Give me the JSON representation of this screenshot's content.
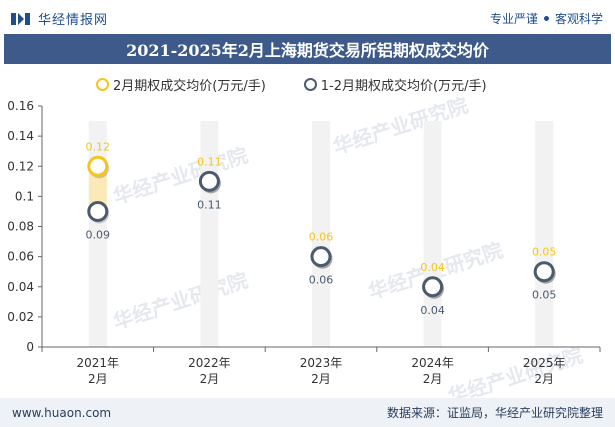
{
  "brand": {
    "name": "华经情报网"
  },
  "tagline": {
    "left": "专业严谨",
    "right": "客观科学"
  },
  "title": "2021-2025年2月上海期货交易所铝期权成交均价",
  "footer": {
    "site": "www.huaon.com",
    "source": "数据来源：证监局，华经产业研究院整理"
  },
  "watermark": "华经产业研究院",
  "colors": {
    "accent": "#f5c518",
    "series1": "#4a5a72",
    "titleBg": "#3d5a8a"
  },
  "chart_data": {
    "type": "scatter",
    "categories": [
      "2021年\n2月",
      "2022年\n2月",
      "2023年\n2月",
      "2024年\n2月",
      "2025年\n2月"
    ],
    "ylim": [
      0,
      0.16
    ],
    "yticks": [
      "0",
      "0.02",
      "0.04",
      "0.06",
      "0.08",
      "0.1",
      "0.12",
      "0.14",
      "0.16"
    ],
    "series": [
      {
        "name": "2月期权成交均价(万元/手)",
        "values": [
          0.12,
          0.11,
          0.06,
          0.04,
          0.05
        ],
        "labels": [
          "0.12",
          "0.11",
          "0.06",
          "0.04",
          "0.05"
        ],
        "color": "#f5c518"
      },
      {
        "name": "1-2月期权成交均价(万元/手)",
        "values": [
          0.09,
          0.11,
          0.06,
          0.04,
          0.05
        ],
        "labels": [
          "0.09",
          "0.11",
          "0.06",
          "0.04",
          "0.05"
        ],
        "color": "#4a5a72"
      }
    ]
  }
}
